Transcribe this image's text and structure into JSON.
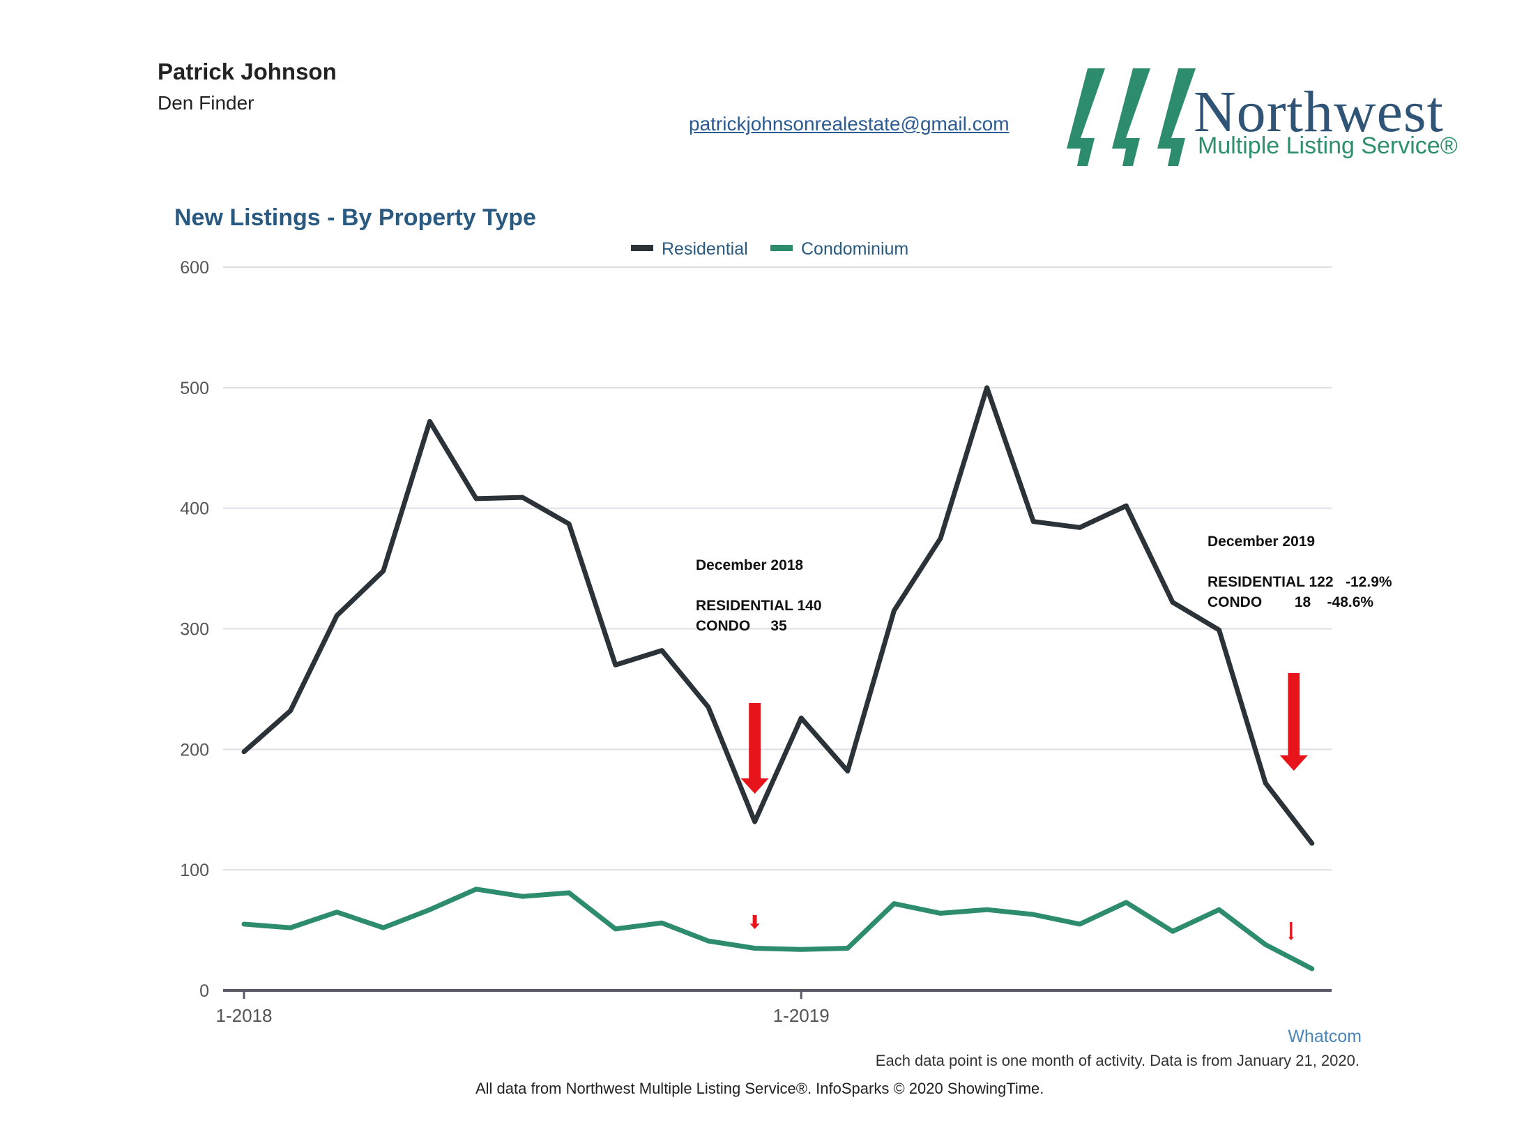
{
  "header": {
    "agent_name": "Patrick Johnson",
    "agent_subtitle": "Den Finder",
    "email": "patrickjohnsonrealestate@gmail.com",
    "logo_name": "Northwest",
    "logo_subtitle": "Multiple Listing Service®"
  },
  "colors": {
    "residential": "#2b3338",
    "condominium": "#2e8c6e",
    "gridline": "#dedee6",
    "axis": "#5a5a66",
    "title": "#2a5a80",
    "annotation_arrow": "#e8141c"
  },
  "chart_data": {
    "type": "line",
    "title": "New Listings - By Property Type",
    "x": [
      "1-2018",
      "2-2018",
      "3-2018",
      "4-2018",
      "5-2018",
      "6-2018",
      "7-2018",
      "8-2018",
      "9-2018",
      "10-2018",
      "11-2018",
      "12-2018",
      "1-2019",
      "2-2019",
      "3-2019",
      "4-2019",
      "5-2019",
      "6-2019",
      "7-2019",
      "8-2019",
      "9-2019",
      "10-2019",
      "11-2019",
      "12-2019"
    ],
    "x_tick_labels": [
      "1-2018",
      "1-2019"
    ],
    "series": [
      {
        "name": "Residential",
        "values": [
          198,
          232,
          311,
          348,
          472,
          408,
          409,
          387,
          270,
          282,
          235,
          140,
          226,
          182,
          315,
          375,
          500,
          389,
          384,
          402,
          322,
          299,
          172,
          122
        ]
      },
      {
        "name": "Condominium",
        "values": [
          55,
          52,
          65,
          52,
          67,
          84,
          78,
          81,
          51,
          56,
          41,
          35,
          34,
          35,
          72,
          64,
          67,
          63,
          55,
          73,
          49,
          67,
          38,
          18
        ]
      }
    ],
    "yticks": [
      0,
      100,
      200,
      300,
      400,
      500,
      600
    ],
    "ylim": [
      0,
      600
    ],
    "grid": true,
    "legend": "top-center",
    "annotations": [
      {
        "lines": [
          "December 2018",
          "",
          "RESIDENTIAL 140",
          "CONDO     35"
        ],
        "month": "12-2018"
      },
      {
        "lines": [
          "December 2019",
          "",
          "RESIDENTIAL 122   -12.9%",
          "CONDO        18    -48.6%"
        ],
        "month": "12-2019"
      }
    ]
  },
  "footer": {
    "region": "Whatcom",
    "note": "Each data point is one month of activity. Data is from January 21, 2020.",
    "source": "All data from Northwest Multiple Listing Service®. InfoSparks © 2020 ShowingTime."
  }
}
